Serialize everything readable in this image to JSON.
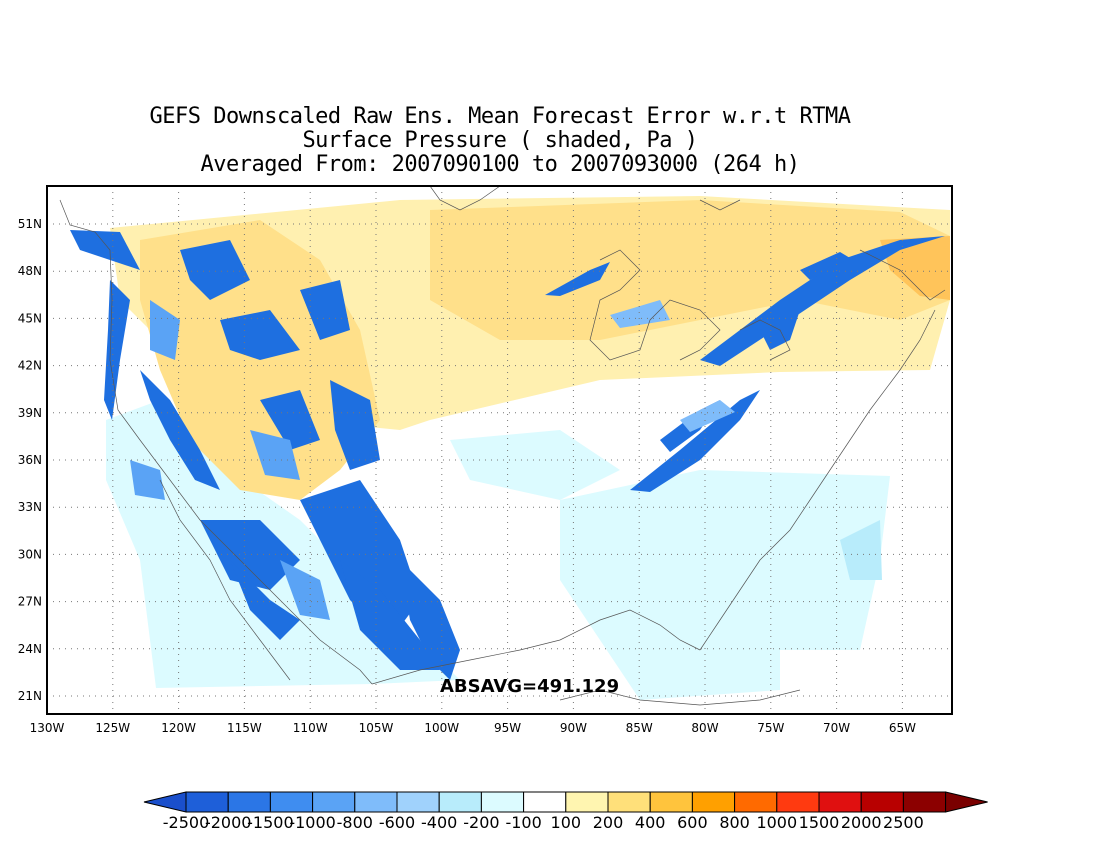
{
  "title": {
    "line1": "GEFS Downscaled Raw Ens. Mean Forecast Error w.r.t RTMA",
    "line2": "Surface Pressure ( shaded, Pa )",
    "line3": "Averaged From: 2007090100 to 2007093000 (264 h)"
  },
  "absavg_label": "ABSAVG=491.129",
  "axes": {
    "lat_ticks": [
      "51N",
      "48N",
      "45N",
      "42N",
      "39N",
      "36N",
      "33N",
      "30N",
      "27N",
      "24N",
      "21N"
    ],
    "lon_ticks": [
      "130W",
      "125W",
      "120W",
      "115W",
      "110W",
      "105W",
      "100W",
      "95W",
      "90W",
      "85W",
      "80W",
      "75W",
      "70W",
      "65W"
    ],
    "grid": true
  },
  "colorbar": {
    "labels": [
      "-2500",
      "-2000",
      "-1500",
      "-1000",
      "-800",
      "-600",
      "-400",
      "-200",
      "-100",
      "100",
      "200",
      "400",
      "600",
      "800",
      "1000",
      "1500",
      "2000",
      "2500"
    ],
    "colors": [
      "#1e5fd9",
      "#2b76e6",
      "#3f8df0",
      "#5aa3f5",
      "#7fbcfa",
      "#a0d2fc",
      "#b8ecfb",
      "#dcfbff",
      "#ffffff",
      "#fff5b0",
      "#ffe07a",
      "#ffc43d",
      "#ffa000",
      "#ff6a00",
      "#ff3a10",
      "#e01010",
      "#b80000",
      "#8c0000"
    ],
    "under_color": "#1a4fcc",
    "over_color": "#7a0000"
  },
  "colors": {
    "water_blue": "#1e6fe0",
    "light_cyan": "#d8f8ff",
    "pale_yellow": "#fff0b0",
    "yellow": "#ffe08a",
    "orange": "#ffc45a"
  }
}
